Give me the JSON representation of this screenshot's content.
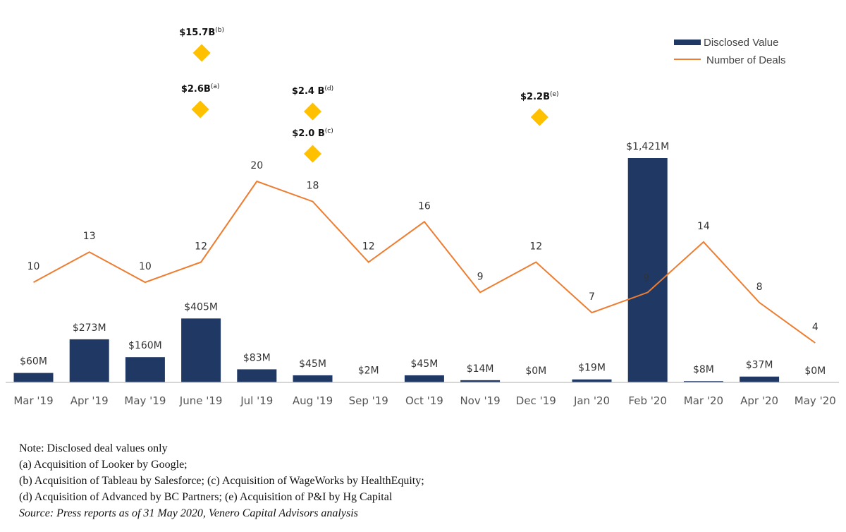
{
  "chart_data": {
    "type": "bar",
    "categories": [
      "Mar '19",
      "Apr '19",
      "May '19",
      "June '19",
      "Jul '19",
      "Aug '19",
      "Sep '19",
      "Oct '19",
      "Nov '19",
      "Dec '19",
      "Jan '20",
      "Feb '20",
      "Mar '20",
      "Apr '20",
      "May '20"
    ],
    "series": [
      {
        "name": "Disclosed Value",
        "type": "bar",
        "color": "#1f3864",
        "values": [
          60,
          273,
          160,
          405,
          83,
          45,
          2,
          45,
          14,
          0,
          19,
          1421,
          8,
          37,
          0
        ],
        "labels": [
          "$60M",
          "$273M",
          "$160M",
          "$405M",
          "$83M",
          "$45M",
          "$2M",
          "$45M",
          "$14M",
          "$0M",
          "$19M",
          "$1,421M",
          "$8M",
          "$37M",
          "$0M"
        ]
      },
      {
        "name": "Number of Deals",
        "type": "line",
        "color": "#ed7d31",
        "values": [
          10,
          13,
          10,
          12,
          20,
          18,
          12,
          16,
          9,
          12,
          7,
          9,
          14,
          8,
          4
        ]
      }
    ],
    "outliers": [
      {
        "category": "June '19",
        "value": "$15.7B",
        "note": "(b)"
      },
      {
        "category": "June '19",
        "value": "$2.6B",
        "note": "(a)"
      },
      {
        "category": "Aug '19",
        "value": "$2.4 B",
        "note": "(d)"
      },
      {
        "category": "Aug '19",
        "value": "$2.0 B",
        "note": "(c)"
      },
      {
        "category": "Dec '19",
        "value": "$2.2B",
        "note": "(e)"
      }
    ],
    "outlier_color": "#ffc000",
    "legend_position": "top-right",
    "grid": false
  },
  "notes": [
    "Note: Disclosed deal values only",
    "(a) Acquisition of Looker by Google;",
    "(b) Acquisition of Tableau by Salesforce; (c) Acquisition of WageWorks by HealthEquity;",
    "(d) Acquisition of Advanced by BC Partners; (e) Acquisition of P&I by Hg Capital"
  ],
  "source": "Source: Press reports as of 31 May 2020, Venero Capital Advisors analysis"
}
